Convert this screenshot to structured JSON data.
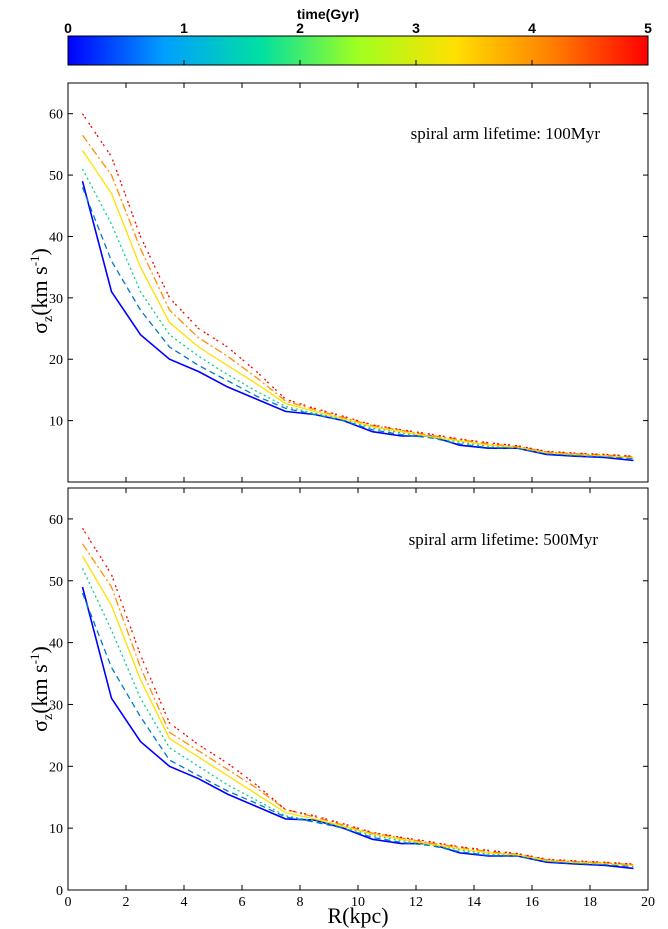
{
  "colorbar": {
    "label": "time(Gyr)",
    "range": [
      0,
      5
    ],
    "ticks": [
      "0",
      "1",
      "2",
      "3",
      "4",
      "5"
    ],
    "colors": [
      "#0000ff",
      "#00a0ff",
      "#00e0a0",
      "#a0ff20",
      "#ffe000",
      "#ff8000",
      "#ff0000"
    ]
  },
  "xlabel": "R(kpc)",
  "ylabel_main": "σ",
  "ylabel_sub": "z",
  "ylabel_unit": "(km s",
  "ylabel_exp": "-1",
  "ylabel_close": ")",
  "chart_data": [
    {
      "type": "line",
      "annotation": "spiral arm lifetime: 100Myr",
      "xlim": [
        0,
        20
      ],
      "ylim": [
        0,
        65
      ],
      "xticks": [
        "0",
        "2",
        "4",
        "6",
        "8",
        "10",
        "12",
        "14",
        "16",
        "18",
        "20"
      ],
      "yticks": [
        "10",
        "20",
        "30",
        "40",
        "50",
        "60"
      ],
      "x": [
        0.5,
        1.5,
        2.5,
        3.5,
        4.5,
        5.5,
        6.5,
        7.5,
        8.5,
        9.5,
        10.5,
        11.5,
        12.5,
        13.5,
        14.5,
        15.5,
        16.5,
        17.5,
        18.5,
        19.5
      ],
      "series": [
        {
          "time": 0.0,
          "color": "#0000ff",
          "dash": "",
          "values": [
            49,
            31,
            24,
            20,
            18,
            15.5,
            13.5,
            11.5,
            11,
            10,
            8.2,
            7.5,
            7.5,
            6,
            5.5,
            5.5,
            4.5,
            4.2,
            4,
            3.5
          ]
        },
        {
          "time": 0.5,
          "color": "#0078c8",
          "dash": "6,4",
          "values": [
            48,
            36,
            28,
            22,
            19,
            16.5,
            14,
            12,
            11,
            10,
            8.5,
            7.7,
            7.2,
            6.2,
            5.6,
            5.5,
            4.6,
            4.3,
            4.1,
            3.8
          ]
        },
        {
          "time": 1.5,
          "color": "#00d090",
          "dash": "2,3",
          "values": [
            51,
            42,
            31,
            24,
            20.5,
            17.5,
            14.8,
            12.3,
            11.2,
            10.2,
            8.8,
            8,
            7.3,
            6.5,
            5.8,
            5.6,
            4.7,
            4.4,
            4.2,
            3.9
          ]
        },
        {
          "time": 2.5,
          "color": "#ffe000",
          "dash": "",
          "values": [
            54,
            47,
            35,
            26,
            22,
            19,
            16,
            12.8,
            11.5,
            10.3,
            9,
            8.2,
            7.4,
            6.7,
            6,
            5.7,
            4.8,
            4.5,
            4.3,
            4.0
          ]
        },
        {
          "time": 3.5,
          "color": "#ff9000",
          "dash": "8,3,2,3",
          "values": [
            56.5,
            50,
            38,
            28,
            23.5,
            20.5,
            17,
            13.2,
            11.8,
            10.5,
            9.2,
            8.4,
            7.6,
            6.9,
            6.2,
            5.8,
            4.9,
            4.6,
            4.4,
            4.1
          ]
        },
        {
          "time": 4.5,
          "color": "#ff0000",
          "dash": "2,2,2,5",
          "values": [
            60,
            53,
            40,
            30,
            25,
            22,
            18,
            13.5,
            12,
            10.7,
            9.3,
            8.5,
            7.8,
            7,
            6.4,
            5.9,
            5,
            4.7,
            4.5,
            4.2
          ]
        }
      ]
    },
    {
      "type": "line",
      "annotation": "spiral arm lifetime: 500Myr",
      "xlim": [
        0,
        20
      ],
      "ylim": [
        0,
        65
      ],
      "xticks": [
        "0",
        "2",
        "4",
        "6",
        "8",
        "10",
        "12",
        "14",
        "16",
        "18",
        "20"
      ],
      "yticks": [
        "0",
        "10",
        "20",
        "30",
        "40",
        "50",
        "60"
      ],
      "x": [
        0.5,
        1.5,
        2.5,
        3.5,
        4.5,
        5.5,
        6.5,
        7.5,
        8.5,
        9.5,
        10.5,
        11.5,
        12.5,
        13.5,
        14.5,
        15.5,
        16.5,
        17.5,
        18.5,
        19.5
      ],
      "series": [
        {
          "time": 0.0,
          "color": "#0000ff",
          "dash": "",
          "values": [
            49,
            31,
            24,
            20,
            18,
            15.5,
            13.5,
            11.5,
            11.3,
            10,
            8.2,
            7.5,
            7.5,
            6,
            5.5,
            5.5,
            4.5,
            4.2,
            4,
            3.5
          ]
        },
        {
          "time": 0.5,
          "color": "#0078c8",
          "dash": "6,4",
          "values": [
            48,
            36,
            28,
            21,
            18.5,
            16,
            14,
            11.8,
            11,
            10,
            8.5,
            7.7,
            7.2,
            6.2,
            5.6,
            5.5,
            4.6,
            4.3,
            4.1,
            3.8
          ]
        },
        {
          "time": 1.5,
          "color": "#00d090",
          "dash": "2,3",
          "values": [
            52,
            42,
            31,
            23,
            20,
            17,
            14.5,
            12,
            11.2,
            10.2,
            8.8,
            8,
            7.3,
            6.5,
            5.8,
            5.6,
            4.7,
            4.4,
            4.2,
            3.9
          ]
        },
        {
          "time": 2.5,
          "color": "#ffe000",
          "dash": "",
          "values": [
            54,
            46,
            34,
            24.5,
            21.5,
            18.5,
            15.5,
            12.5,
            11.5,
            10.3,
            9,
            8.2,
            7.4,
            6.7,
            6,
            5.7,
            4.8,
            4.5,
            4.3,
            4.0
          ]
        },
        {
          "time": 3.5,
          "color": "#ff9000",
          "dash": "8,3,2,3",
          "values": [
            56,
            49,
            36,
            25.5,
            22.5,
            19.5,
            16.5,
            13,
            11.8,
            10.5,
            9.2,
            8.4,
            7.6,
            6.9,
            6.2,
            5.8,
            4.9,
            4.6,
            4.4,
            4.1
          ]
        },
        {
          "time": 4.5,
          "color": "#ff0000",
          "dash": "2,2,2,5",
          "values": [
            58.5,
            51,
            38,
            27,
            23.5,
            20.5,
            17,
            13,
            12,
            10.7,
            9.3,
            8.5,
            7.8,
            7,
            6.4,
            5.9,
            5,
            4.7,
            4.5,
            4.2
          ]
        }
      ]
    }
  ]
}
